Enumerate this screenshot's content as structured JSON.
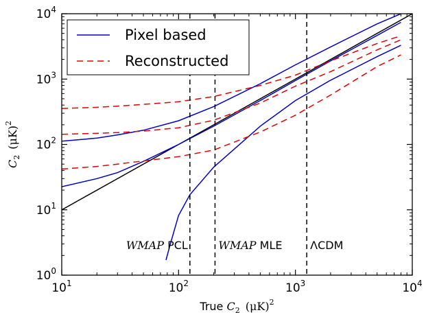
{
  "chart_data": {
    "type": "line",
    "xscale": "log",
    "yscale": "log",
    "xlim": [
      10,
      10000
    ],
    "ylim": [
      1,
      10000
    ],
    "xlabel": {
      "prefix": "True",
      "var": "C",
      "sub": "2",
      "unit": "(μK)",
      "sup": "2"
    },
    "ylabel": {
      "var": "C",
      "sub": "2",
      "unit": "(μK)",
      "sup": "2"
    },
    "xticks": [
      {
        "value": 10,
        "base": "10",
        "exp": "1"
      },
      {
        "value": 100,
        "base": "10",
        "exp": "2"
      },
      {
        "value": 1000,
        "base": "10",
        "exp": "3"
      },
      {
        "value": 10000,
        "base": "10",
        "exp": "4"
      }
    ],
    "yticks": [
      {
        "value": 1,
        "base": "10",
        "exp": "0"
      },
      {
        "value": 10,
        "base": "10",
        "exp": "1"
      },
      {
        "value": 100,
        "base": "10",
        "exp": "2"
      },
      {
        "value": 1000,
        "base": "10",
        "exp": "3"
      },
      {
        "value": 10000,
        "base": "10",
        "exp": "4"
      }
    ],
    "legend": {
      "placement": "top-left",
      "entries": [
        {
          "label": "Pixel based",
          "color": "#0000cc",
          "dash": "solid"
        },
        {
          "label": "Reconstructed",
          "color": "#e00000",
          "dash": "dashed"
        }
      ]
    },
    "series": [
      {
        "kind": "identity",
        "color": "#000000",
        "dash": "solid",
        "x": [
          10,
          10000
        ],
        "y": [
          10,
          10000
        ]
      },
      {
        "kind": "pixel",
        "color": "#0000cc",
        "dash": "solid",
        "x": [
          10,
          20,
          30,
          50,
          100,
          200,
          500,
          1000,
          2000,
          5000,
          8000
        ],
        "y": [
          22.5,
          30,
          37,
          55,
          100,
          190,
          470,
          950,
          1900,
          4650,
          7400
        ]
      },
      {
        "kind": "pixel",
        "color": "#0000cc",
        "dash": "solid",
        "x": [
          10,
          20,
          30,
          50,
          100,
          200,
          500,
          1000,
          2000,
          5000,
          8000
        ],
        "y": [
          112,
          125,
          140,
          165,
          230,
          380,
          850,
          1650,
          3100,
          7000,
          10000
        ]
      },
      {
        "kind": "pixel",
        "color": "#0000cc",
        "dash": "solid",
        "x": [
          78,
          85,
          100,
          125,
          200,
          500,
          1000,
          2000,
          5000,
          8000
        ],
        "y": [
          1.7,
          3,
          8.2,
          17,
          45,
          190,
          470,
          960,
          2200,
          3300
        ]
      },
      {
        "kind": "reconstructed",
        "color": "#e00000",
        "dash": "dashed",
        "x": [
          10,
          20,
          30,
          50,
          100,
          200,
          500,
          1000,
          2000,
          5000,
          8000
        ],
        "y": [
          42,
          46,
          50,
          56,
          65,
          82,
          155,
          280,
          570,
          1550,
          2350
        ]
      },
      {
        "kind": "reconstructed",
        "color": "#e00000",
        "dash": "dashed",
        "x": [
          10,
          20,
          30,
          50,
          100,
          200,
          500,
          1000,
          2000,
          5000,
          8000
        ],
        "y": [
          143,
          148,
          152,
          160,
          180,
          235,
          430,
          780,
          1300,
          2800,
          4000
        ]
      },
      {
        "kind": "reconstructed",
        "color": "#e00000",
        "dash": "dashed",
        "x": [
          10,
          20,
          30,
          50,
          100,
          200,
          500,
          1000,
          2000,
          5000,
          8000
        ],
        "y": [
          355,
          370,
          385,
          410,
          450,
          540,
          800,
          1150,
          1900,
          3500,
          4600
        ]
      }
    ],
    "vlines": [
      {
        "x": 125,
        "label_italic": "WMAP",
        "label_rest": " PCL"
      },
      {
        "x": 205,
        "label_italic": "WMAP",
        "label_rest": " MLE"
      },
      {
        "x": 1250,
        "label_italic": "",
        "label_rest": "ΛCDM"
      }
    ]
  }
}
